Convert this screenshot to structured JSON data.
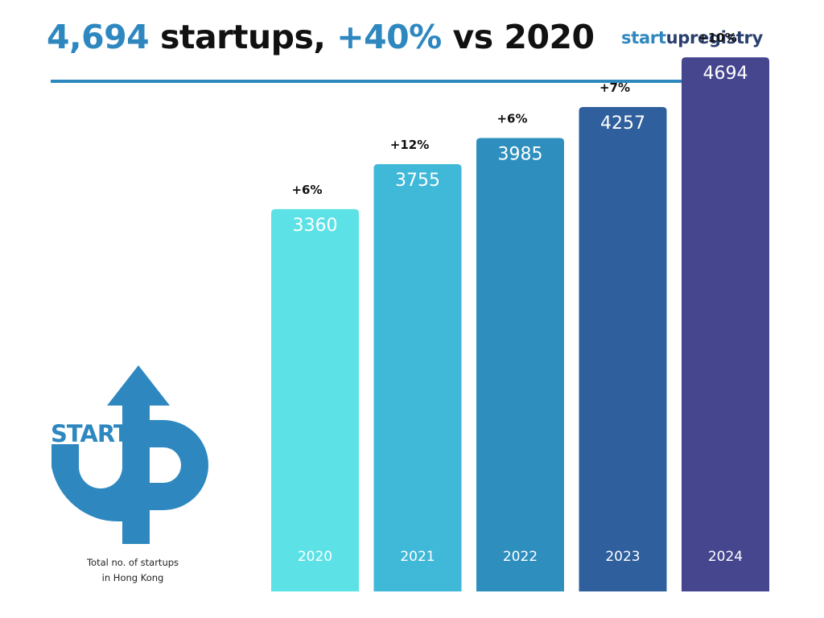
{
  "header": {
    "headline": {
      "count": "4,694",
      "count_suffix": " startups, ",
      "growth": "+40%",
      "growth_suffix": " vs 2020"
    },
    "brand": {
      "part_a": "start",
      "part_b": "upregistry"
    }
  },
  "logo": {
    "text": "START",
    "icon": "startup-arrow-logo-icon"
  },
  "caption": {
    "line1": "Total no. of startups",
    "line2": "in Hong Kong"
  },
  "colors": {
    "accent": "#2e88bf",
    "brand_dark": "#2a3f6e"
  },
  "chart_data": {
    "type": "bar",
    "categories": [
      "2020",
      "2021",
      "2022",
      "2023",
      "2024"
    ],
    "values": [
      3360,
      3755,
      3985,
      4257,
      4694
    ],
    "changes": [
      "+6%",
      "+12%",
      "+6%",
      "+7%",
      "+10%"
    ],
    "bar_colors": [
      "#5ce2e6",
      "#40b8d8",
      "#2e8fbe",
      "#2f5f9c",
      "#46468f"
    ],
    "title": "4,694 startups, +40% vs 2020",
    "xlabel": "",
    "ylabel": "",
    "ylim": [
      0,
      4950
    ],
    "grid": false,
    "legend": "none"
  }
}
